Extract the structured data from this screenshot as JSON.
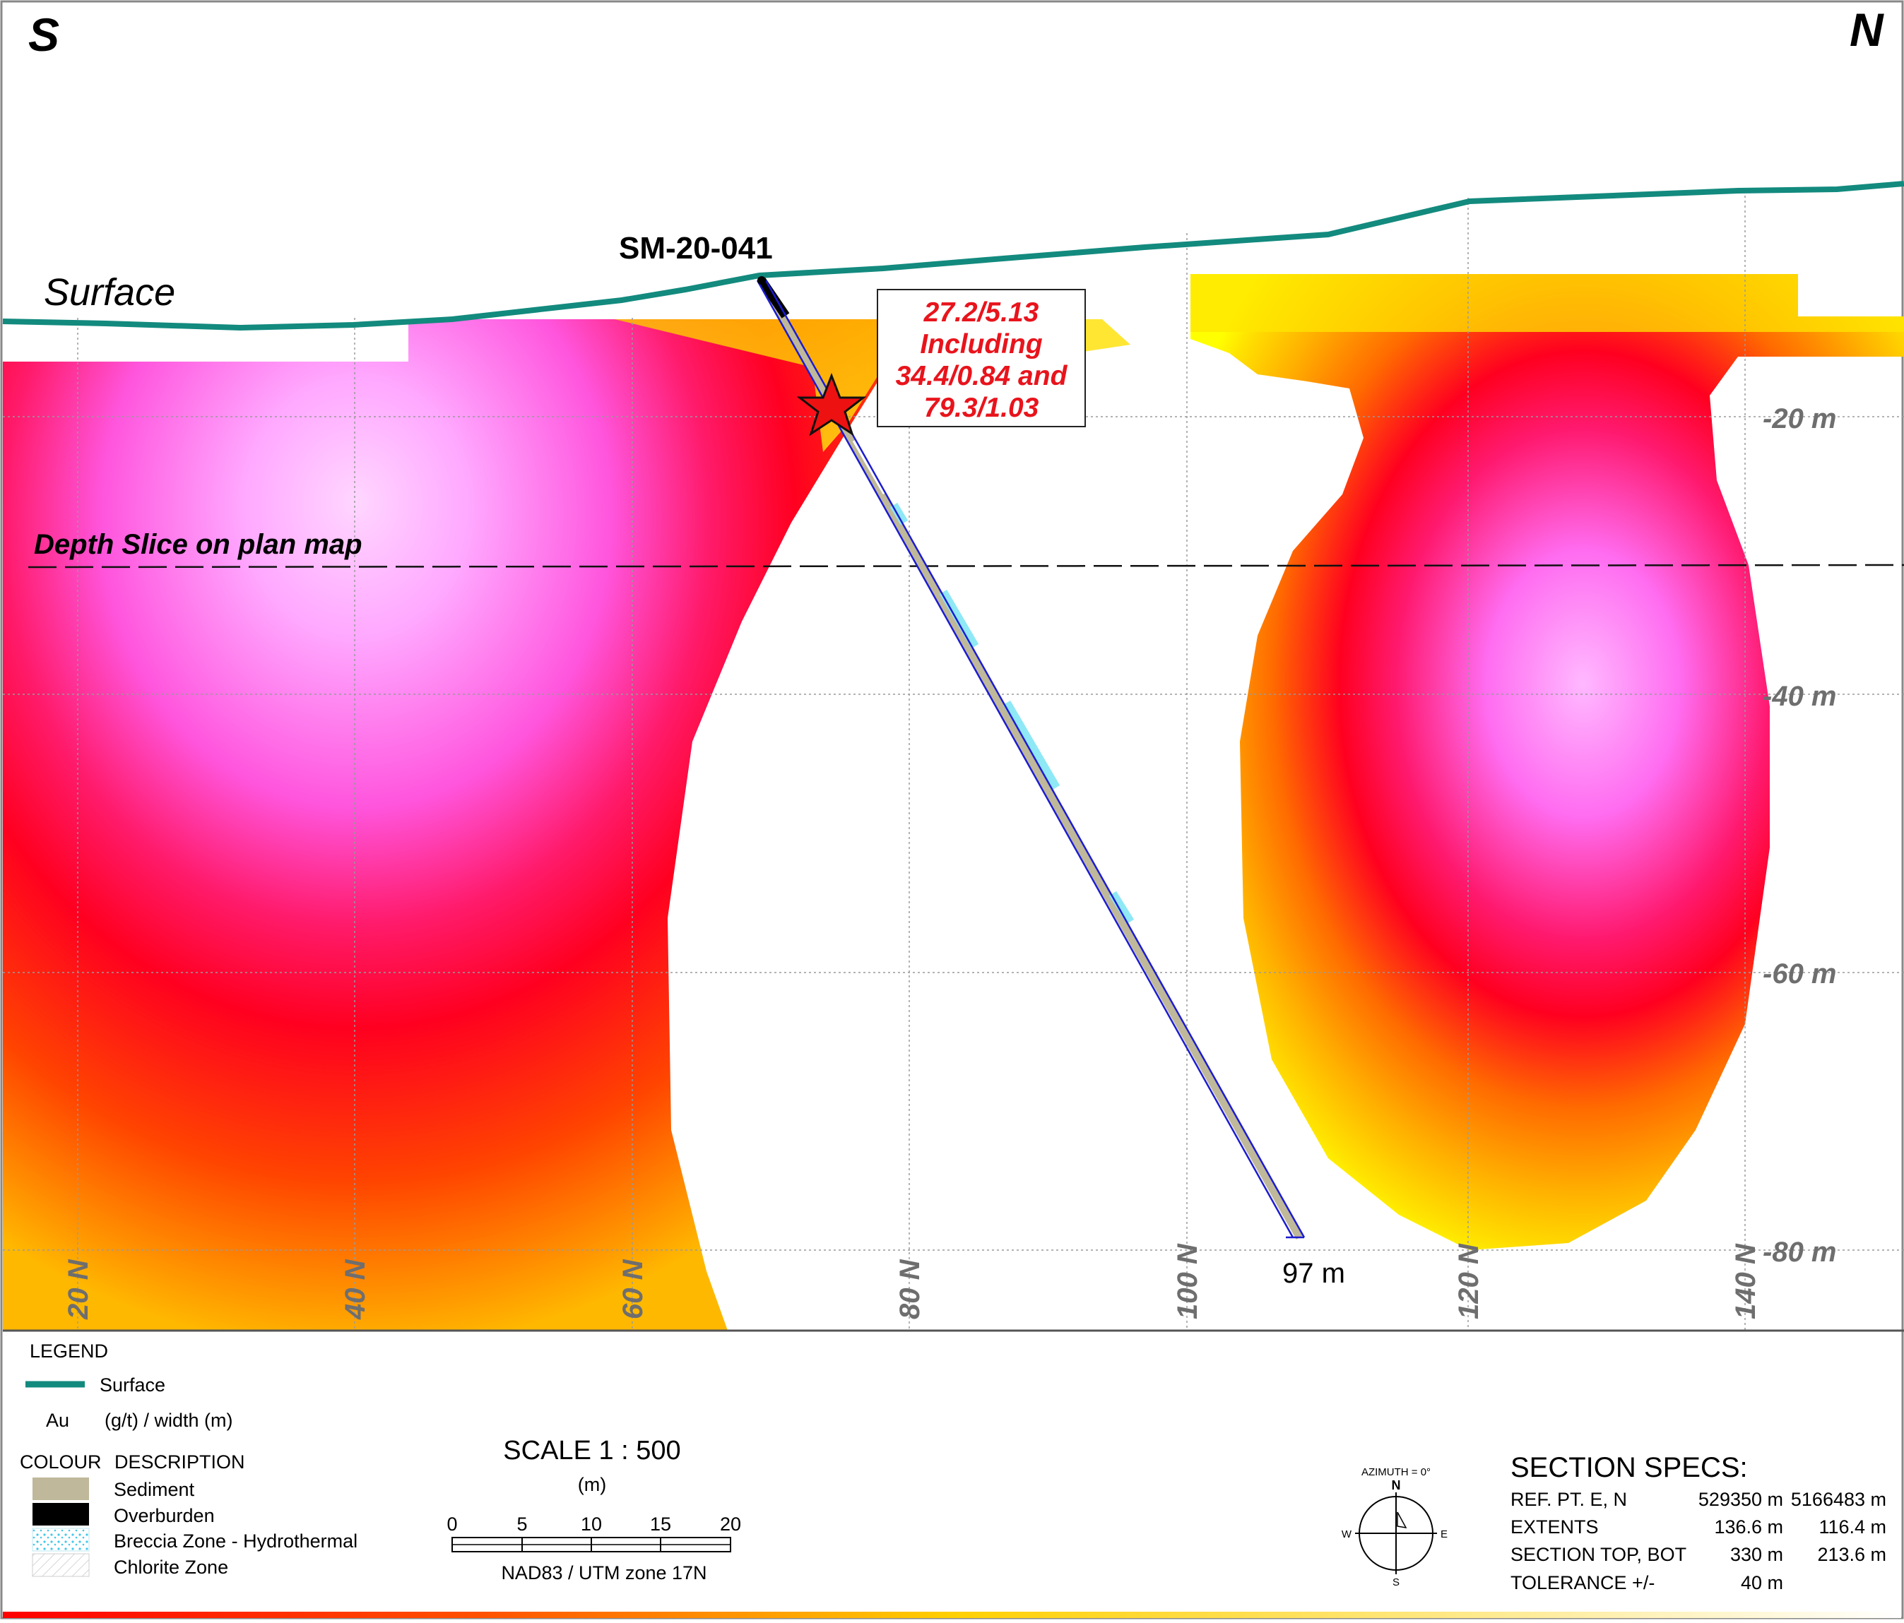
{
  "section": {
    "south_label": "S",
    "north_label": "N",
    "surface_label": "Surface",
    "drillhole_name": "SM-20-041",
    "intercept_lines": [
      "27.2/5.13",
      "Including",
      "34.4/0.84 and",
      "79.3/1.03"
    ],
    "depth_slice_label": "Depth Slice on plan map",
    "hole_end_label": "97 m",
    "elevation_labels": [
      "-20 m",
      "-40 m",
      "-60 m",
      "-80 m"
    ],
    "northing_labels": [
      "20 N",
      "40 N",
      "60 N",
      "80 N",
      "100 N",
      "120 N",
      "140 N"
    ]
  },
  "legend": {
    "title": "LEGEND",
    "surface_entry": "Surface",
    "au_label": "Au",
    "au_units": "(g/t) / width (m)",
    "colour_header": "COLOUR",
    "description_header": "DESCRIPTION",
    "items": [
      {
        "label": "Sediment",
        "color": "#bfb89a"
      },
      {
        "label": "Overburden",
        "color": "#000000"
      },
      {
        "label": "Breccia Zone - Hydrothermal",
        "color": "#8fe8f5"
      },
      {
        "label": "Chlorite Zone",
        "color": "#ffffff"
      }
    ]
  },
  "scale": {
    "title": "SCALE  1 : 500",
    "unit": "(m)",
    "ticks": [
      "0",
      "5",
      "10",
      "15",
      "20"
    ],
    "datum": "NAD83 / UTM zone 17N"
  },
  "compass": {
    "azimuth": "AZIMUTH = 0°",
    "n": "N",
    "s": "S",
    "e": "E",
    "w": "W"
  },
  "specs": {
    "title": "SECTION  SPECS:",
    "rows": [
      {
        "label": "REF. PT.  E, N",
        "v1": "529350 m",
        "v2": "5166483 m"
      },
      {
        "label": "EXTENTS",
        "v1": "136.6 m",
        "v2": "116.4 m"
      },
      {
        "label": "SECTION TOP, BOT",
        "v1": "330 m",
        "v2": "213.6 m"
      },
      {
        "label": "TOLERANCE  +/-",
        "v1": "40 m",
        "v2": ""
      }
    ]
  },
  "colors": {
    "surface_line": "#138a7e",
    "annotation_red": "#e8141c",
    "drillhole_trace": "#1c1cd0",
    "sediment": "#bfb89a"
  }
}
